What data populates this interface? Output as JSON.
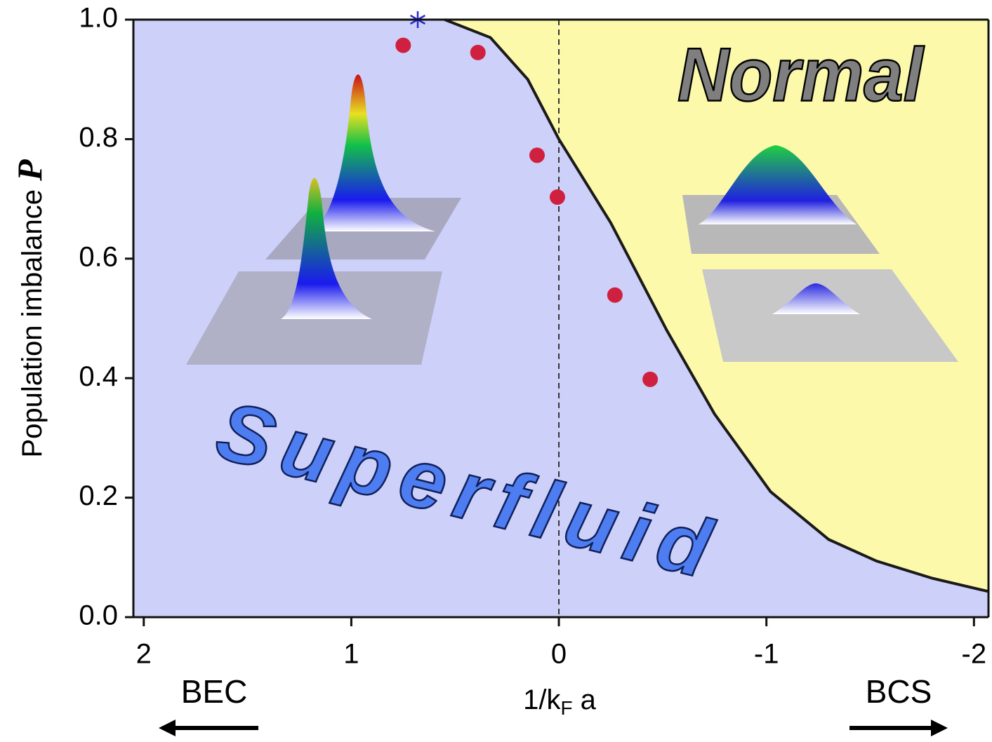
{
  "chart_data": {
    "type": "line",
    "xlabel": [
      "1/k",
      "F",
      " a"
    ],
    "ylabel": [
      "Population imbalance",
      "P"
    ],
    "xlim": [
      2.05,
      -2.07
    ],
    "ylim": [
      0,
      1
    ],
    "xticks": [
      2,
      1,
      0,
      -1,
      -2
    ],
    "yticks": [
      {
        "value": 0,
        "label": "0.0"
      },
      0.2,
      0.4,
      0.6,
      0.8,
      {
        "value": 1,
        "label": "1.0"
      }
    ],
    "series": [
      {
        "type": "line",
        "color": "#1a1a1a",
        "fill_below": "#cdd0f8",
        "fill_above": "#fdf9ab",
        "x": [
          0.55,
          0.33,
          0.15,
          0,
          -0.25,
          -0.52,
          -0.75,
          -1.02,
          -1.3,
          -1.53,
          -1.8,
          -2.07
        ],
        "values": [
          1.0,
          0.97,
          0.9,
          0.8,
          0.66,
          0.48,
          0.34,
          0.21,
          0.13,
          0.094,
          0.065,
          0.043
        ]
      },
      {
        "type": "scatter",
        "color": "#d0203f",
        "x": [
          0.75,
          0.39,
          0.105,
          0.007,
          -0.27,
          -0.44
        ],
        "values": [
          0.957,
          0.945,
          0.773,
          0.703,
          0.539,
          0.398
        ]
      },
      {
        "type": "star",
        "color": "#2a2ad0",
        "x": [
          0.68
        ],
        "values": [
          1.0
        ]
      }
    ],
    "vline": 0,
    "regions": [
      "Normal",
      "Superfluid"
    ],
    "ends": [
      "BEC",
      "BCS"
    ]
  }
}
